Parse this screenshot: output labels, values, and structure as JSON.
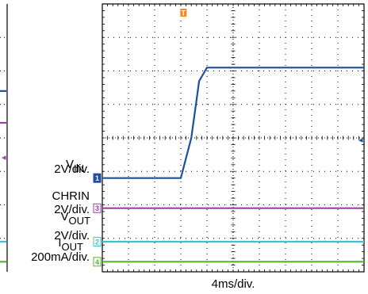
{
  "chart_data": {
    "type": "line",
    "title": "",
    "xlabel": "4ms/div.",
    "x_divisions": 10,
    "y_divisions": 8,
    "grid": true,
    "x_unit": "div",
    "y_unit": "div",
    "trigger_marker": "T",
    "right_marker": "◂",
    "series": [
      {
        "key": "vin",
        "label_main": "V",
        "label_sub": "IN",
        "scale": "2V/div.",
        "channel": "1",
        "color": "#1f4e9c",
        "x": [
          0,
          3.0,
          3.4,
          3.7,
          4.0,
          10
        ],
        "y": [
          -1.2,
          -1.2,
          0.0,
          1.7,
          2.1,
          2.1
        ]
      },
      {
        "key": "chrin",
        "label_main": "CHRIN",
        "label_sub": "",
        "scale": "2V/div.",
        "channel": "3",
        "color": "#9b3fa3",
        "x": [
          0,
          10
        ],
        "y": [
          -2.1,
          -2.1
        ]
      },
      {
        "key": "vout",
        "label_main": "V",
        "label_sub": "OUT",
        "scale": "2V/div.",
        "channel": "2",
        "color": "#3cc3cf",
        "x": [
          0,
          10
        ],
        "y": [
          -3.1,
          -3.1
        ]
      },
      {
        "key": "iout",
        "label_main": "I",
        "label_sub": "OUT",
        "scale": "200mA/div.",
        "channel": "4",
        "color": "#55b62a",
        "x": [
          0,
          10
        ],
        "y": [
          -3.7,
          -3.7
        ]
      }
    ]
  }
}
